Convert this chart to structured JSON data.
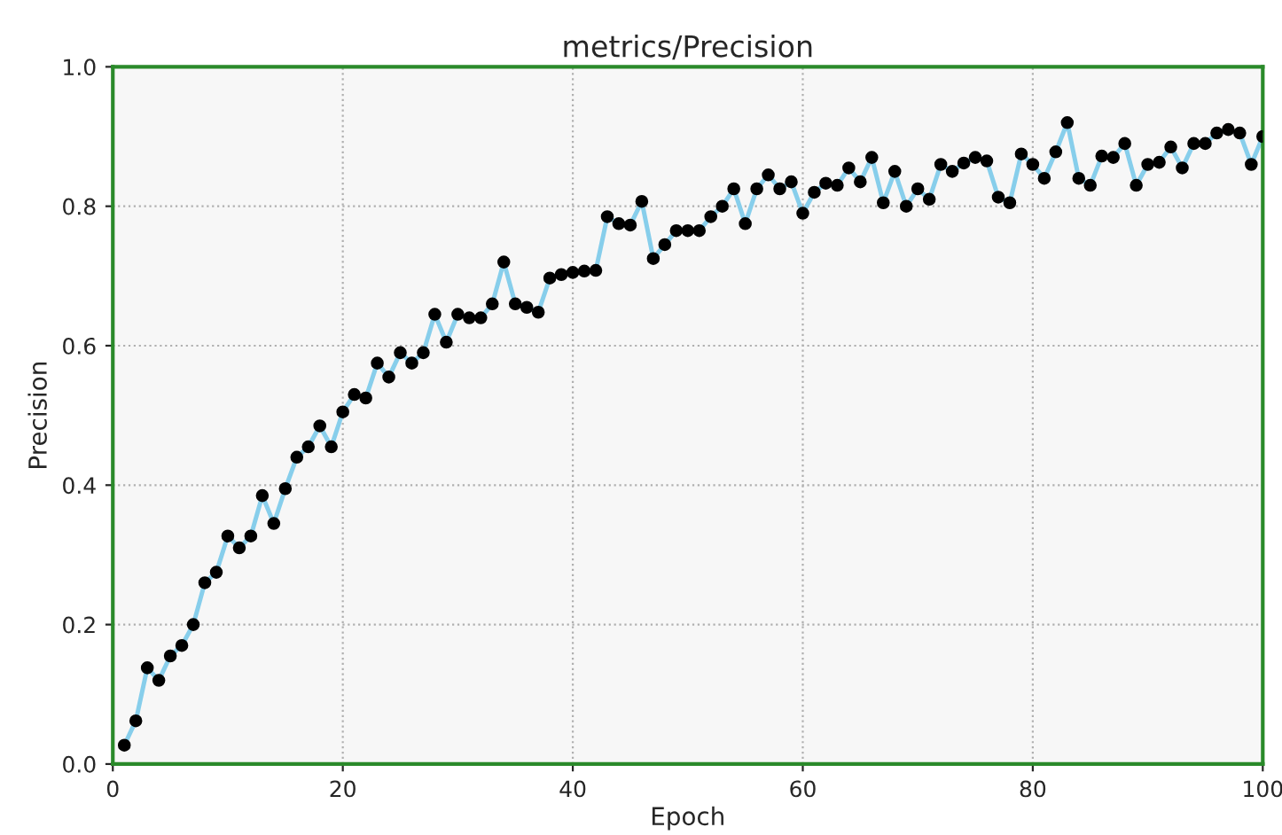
{
  "chart_data": {
    "type": "line",
    "title": "metrics/Precision",
    "xlabel": "Epoch",
    "ylabel": "Precision",
    "xlim": [
      0,
      100
    ],
    "ylim": [
      0,
      1.0
    ],
    "xticks": [
      0,
      20,
      40,
      60,
      80,
      100
    ],
    "yticks": [
      {
        "value": 0,
        "label": "0.0"
      },
      {
        "value": 0.2,
        "label": "0.2"
      },
      {
        "value": 0.4,
        "label": "0.4"
      },
      {
        "value": 0.6,
        "label": "0.6"
      },
      {
        "value": 0.8,
        "label": "0.8"
      },
      {
        "value": 1.0,
        "label": "1.0"
      }
    ],
    "grid": true,
    "marker": "circle",
    "line_style": "solid",
    "x": [
      1,
      2,
      3,
      4,
      5,
      6,
      7,
      8,
      9,
      10,
      11,
      12,
      13,
      14,
      15,
      16,
      17,
      18,
      19,
      20,
      21,
      22,
      23,
      24,
      25,
      26,
      27,
      28,
      29,
      30,
      31,
      32,
      33,
      34,
      35,
      36,
      37,
      38,
      39,
      40,
      41,
      42,
      43,
      44,
      45,
      46,
      47,
      48,
      49,
      50,
      51,
      52,
      53,
      54,
      55,
      56,
      57,
      58,
      59,
      60,
      61,
      62,
      63,
      64,
      65,
      66,
      67,
      68,
      69,
      70,
      71,
      72,
      73,
      74,
      75,
      76,
      77,
      78,
      79,
      80,
      81,
      82,
      83,
      84,
      85,
      86,
      87,
      88,
      89,
      90,
      91,
      92,
      93,
      94,
      95,
      96,
      97,
      98,
      99,
      100
    ],
    "series": [
      {
        "color": "#87ceeb",
        "values": [
          0.027,
          0.062,
          0.138,
          0.12,
          0.155,
          0.17,
          0.2,
          0.26,
          0.275,
          0.327,
          0.31,
          0.327,
          0.385,
          0.345,
          0.395,
          0.44,
          0.455,
          0.485,
          0.455,
          0.505,
          0.53,
          0.525,
          0.575,
          0.555,
          0.59,
          0.575,
          0.59,
          0.645,
          0.605,
          0.645,
          0.64,
          0.64,
          0.66,
          0.72,
          0.66,
          0.655,
          0.648,
          0.697,
          0.702,
          0.705,
          0.707,
          0.708,
          0.785,
          0.775,
          0.773,
          0.807,
          0.725,
          0.745,
          0.765,
          0.765,
          0.765,
          0.785,
          0.8,
          0.825,
          0.775,
          0.825,
          0.845,
          0.825,
          0.835,
          0.79,
          0.82,
          0.833,
          0.83,
          0.855,
          0.835,
          0.87,
          0.805,
          0.85,
          0.8,
          0.825,
          0.81,
          0.86,
          0.85,
          0.862,
          0.87,
          0.865,
          0.813,
          0.805,
          0.875,
          0.86,
          0.84,
          0.878,
          0.92,
          0.84,
          0.83,
          0.872,
          0.87,
          0.89,
          0.83,
          0.86,
          0.863,
          0.885,
          0.855,
          0.89,
          0.89,
          0.905,
          0.91,
          0.905,
          0.86,
          0.9
        ]
      }
    ]
  }
}
